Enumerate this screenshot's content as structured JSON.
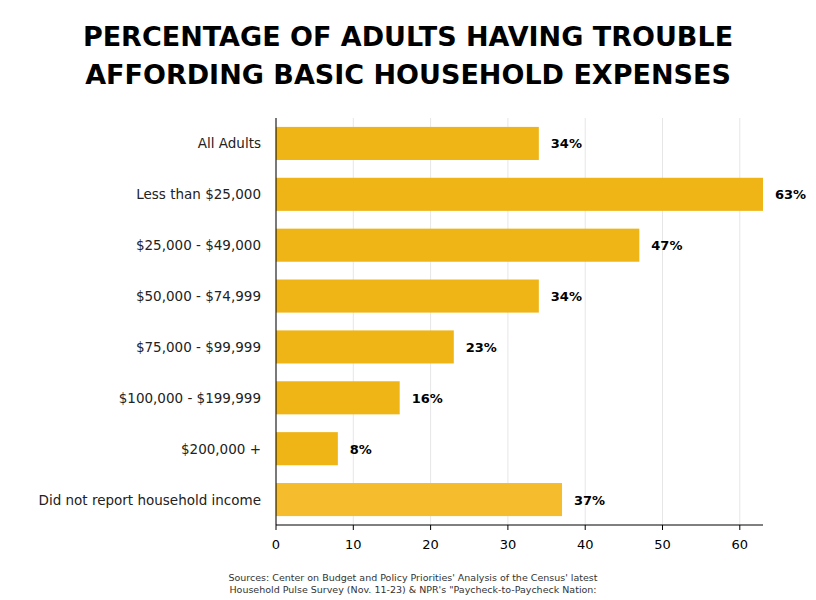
{
  "chart_data": {
    "type": "bar",
    "orientation": "horizontal",
    "title": "PERCENTAGE OF ADULTS HAVING TROUBLE AFFORDING BASIC HOUSEHOLD EXPENSES",
    "categories": [
      "All Adults",
      "Less than $25,000",
      "$25,000 - $49,000",
      "$50,000 - $74,999",
      "$75,000 - $99,999",
      "$100,000 - $199,999",
      "$200,000 +",
      "Did not report household income"
    ],
    "values": [
      34,
      63,
      47,
      34,
      23,
      16,
      8,
      37
    ],
    "value_labels": [
      "34%",
      "63%",
      "47%",
      "34%",
      "23%",
      "16%",
      "8%",
      "37%"
    ],
    "colors": [
      "#efb415",
      "#efb415",
      "#efb415",
      "#efb415",
      "#efb415",
      "#efb415",
      "#efb415",
      "#f5bc2d"
    ],
    "xlim": [
      0,
      63
    ],
    "xticks": [
      0,
      10,
      20,
      30,
      40,
      50,
      60
    ],
    "grid": true,
    "data_labels": true,
    "source": [
      "Sources: Center on Budget and Policy Priorities' Analysis of the Census' latest",
      "Household Pulse Survey (Nov. 11-23) & NPR's \"Paycheck-to-Paycheck Nation:"
    ]
  }
}
